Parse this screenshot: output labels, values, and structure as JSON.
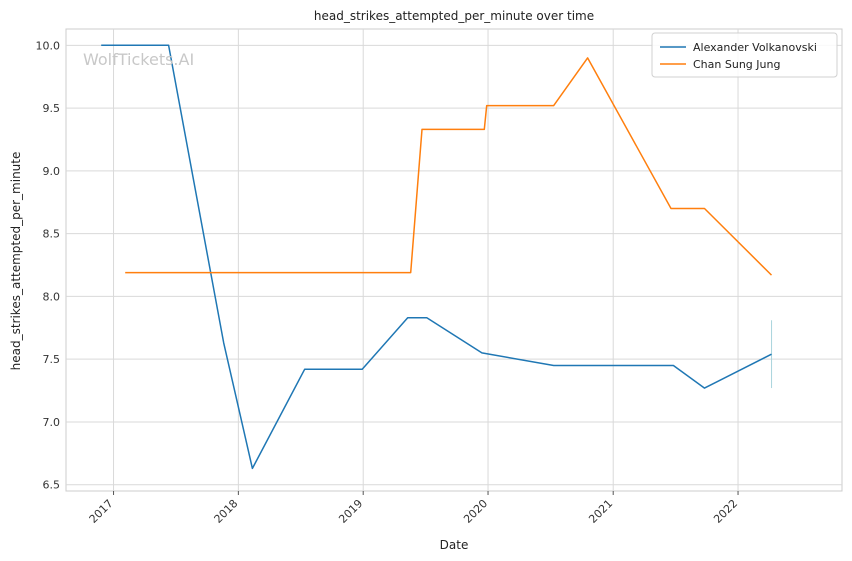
{
  "chart_data": {
    "type": "line",
    "title": "head_strikes_attempted_per_minute over time",
    "xlabel": "Date",
    "ylabel": "head_strikes_attempted_per_minute",
    "watermark": "WolfTickets.AI",
    "x_ticks": [
      "2017",
      "2018",
      "2019",
      "2020",
      "2021",
      "2022"
    ],
    "y_ticks": [
      "6.5",
      "7.0",
      "7.5",
      "8.0",
      "8.5",
      "9.0",
      "9.5",
      "10.0"
    ],
    "ylim": [
      6.45,
      10.13
    ],
    "xlim": [
      "2016-08-15",
      "2022-11-01"
    ],
    "grid": true,
    "legend_position": "top-right",
    "series": [
      {
        "name": "Alexander Volkanovski",
        "color": "#1f77b4",
        "points": [
          {
            "x": "2016-11-26",
            "y": 10.0
          },
          {
            "x": "2017-06-11",
            "y": 10.0
          },
          {
            "x": "2017-11-19",
            "y": 7.63
          },
          {
            "x": "2018-02-11",
            "y": 6.63
          },
          {
            "x": "2018-07-14",
            "y": 7.42
          },
          {
            "x": "2018-12-29",
            "y": 7.42
          },
          {
            "x": "2019-05-11",
            "y": 7.83
          },
          {
            "x": "2019-07-06",
            "y": 7.83
          },
          {
            "x": "2019-12-14",
            "y": 7.55
          },
          {
            "x": "2020-07-11",
            "y": 7.45
          },
          {
            "x": "2021-06-26",
            "y": 7.45
          },
          {
            "x": "2021-09-25",
            "y": 7.27
          },
          {
            "x": "2022-04-09",
            "y": 7.54
          }
        ]
      },
      {
        "name": "Chan Sung Jung",
        "color": "#ff7f0e",
        "points": [
          {
            "x": "2017-02-04",
            "y": 8.19
          },
          {
            "x": "2019-05-20",
            "y": 8.19
          },
          {
            "x": "2019-06-22",
            "y": 9.33
          },
          {
            "x": "2019-12-21",
            "y": 9.33
          },
          {
            "x": "2019-12-28",
            "y": 9.52
          },
          {
            "x": "2020-07-11",
            "y": 9.52
          },
          {
            "x": "2020-10-18",
            "y": 9.9
          },
          {
            "x": "2021-06-19",
            "y": 8.7
          },
          {
            "x": "2021-09-25",
            "y": 8.7
          },
          {
            "x": "2022-04-09",
            "y": 8.17
          }
        ]
      }
    ]
  }
}
